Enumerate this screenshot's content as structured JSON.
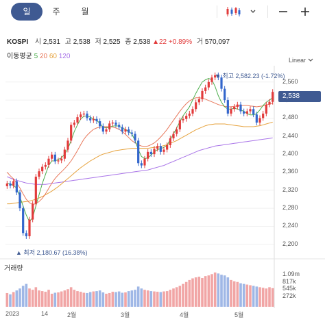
{
  "tabs": [
    {
      "label": "일",
      "active": true
    },
    {
      "label": "주",
      "active": false
    },
    {
      "label": "월",
      "active": false
    }
  ],
  "toolbar_icons": [
    "candlestick-icon",
    "chevron-down-icon",
    "minus-icon",
    "plus-icon"
  ],
  "quote": {
    "symbol": "KOSPI",
    "open_label": "시",
    "open": "2,531",
    "high_label": "고",
    "high": "2,538",
    "low_label": "저",
    "low": "2,525",
    "close_label": "종",
    "close": "2,538",
    "change": "▲22",
    "change_pct": "+0.89%",
    "volume_label": "거",
    "volume": "570,097"
  },
  "moving_averages": {
    "label": "이동평균",
    "periods": [
      "5",
      "20",
      "60",
      "120"
    ]
  },
  "scale_selector": "Linear",
  "current_price_tag": "2,538",
  "high_annotation": "최고 2,582.23 (-1.72%)",
  "low_annotation": "최저 2,180.67 (16.38%)",
  "volume_title": "거래량",
  "colors": {
    "up": "#e23b3b",
    "down": "#3366cc",
    "accent": "#3f5a92",
    "ma5": "#4cae4c",
    "ma20": "#e8775a",
    "ma60": "#e6a23c",
    "ma120": "#a974e8"
  },
  "chart_data": {
    "type": "candlestick",
    "y_ticks": [
      "2,560",
      "2,520",
      "2,480",
      "2,440",
      "2,400",
      "2,360",
      "2,320",
      "2,280",
      "2,240",
      "2,200"
    ],
    "y_range": [
      2180,
      2590
    ],
    "x_ticks": [
      "2023",
      "14",
      "2월",
      "3월",
      "4월",
      "5월"
    ],
    "volume_ticks": [
      "1.09m",
      "817k",
      "545k",
      "272k"
    ],
    "volume_max": 1090000,
    "closes": [
      2335,
      2330,
      2340,
      2315,
      2280,
      2225,
      2218,
      2255,
      2290,
      2350,
      2362,
      2372,
      2376,
      2390,
      2399,
      2384,
      2386,
      2390,
      2410,
      2430,
      2465,
      2470,
      2482,
      2488,
      2490,
      2480,
      2475,
      2478,
      2473,
      2462,
      2450,
      2455,
      2468,
      2470,
      2465,
      2460,
      2450,
      2455,
      2448,
      2445,
      2430,
      2380,
      2375,
      2390,
      2405,
      2400,
      2412,
      2418,
      2405,
      2410,
      2420,
      2435,
      2445,
      2455,
      2475,
      2478,
      2485,
      2490,
      2500,
      2515,
      2522,
      2540,
      2548,
      2560,
      2570,
      2575,
      2570,
      2545,
      2520,
      2490,
      2500,
      2505,
      2510,
      2495,
      2490,
      2495,
      2500,
      2488,
      2470,
      2480,
      2490,
      2510,
      2516,
      2538
    ],
    "ma5": [
      2335,
      2334,
      2330,
      2325,
      2305,
      2285,
      2265,
      2250,
      2260,
      2285,
      2310,
      2335,
      2355,
      2375,
      2385,
      2385,
      2388,
      2392,
      2400,
      2412,
      2430,
      2450,
      2465,
      2478,
      2484,
      2485,
      2482,
      2478,
      2475,
      2468,
      2460,
      2458,
      2460,
      2462,
      2463,
      2462,
      2458,
      2455,
      2450,
      2445,
      2430,
      2410,
      2395,
      2390,
      2392,
      2398,
      2405,
      2410,
      2412,
      2415,
      2420,
      2432,
      2445,
      2458,
      2472,
      2485,
      2495,
      2505,
      2520,
      2535,
      2548,
      2560,
      2565,
      2568,
      2565,
      2550,
      2530,
      2515,
      2505,
      2500,
      2500,
      2502,
      2500,
      2498,
      2495,
      2490,
      2487,
      2487,
      2490,
      2498,
      2508,
      2515,
      2520,
      2525
    ],
    "ma20": [
      2360,
      2352,
      2345,
      2336,
      2325,
      2312,
      2300,
      2292,
      2289,
      2290,
      2295,
      2302,
      2312,
      2324,
      2336,
      2346,
      2354,
      2361,
      2368,
      2376,
      2385,
      2396,
      2408,
      2421,
      2433,
      2442,
      2449,
      2455,
      2458,
      2460,
      2461,
      2461,
      2461,
      2460,
      2458,
      2455,
      2450,
      2444,
      2437,
      2430,
      2425,
      2421,
      2418,
      2417,
      2418,
      2421,
      2425,
      2431,
      2438,
      2446,
      2455,
      2465,
      2475,
      2485,
      2495,
      2504,
      2512,
      2518,
      2522,
      2525,
      2525,
      2524,
      2522,
      2519,
      2516,
      2513,
      2510,
      2508,
      2506,
      2505,
      2505,
      2506,
      2507,
      2508,
      2508,
      2508,
      2507,
      2506,
      2505,
      2506,
      2507,
      2509,
      2511,
      2513
    ],
    "ma60": [
      2290,
      2290,
      2291,
      2292,
      2293,
      2294,
      2295,
      2296,
      2298,
      2300,
      2303,
      2306,
      2310,
      2314,
      2318,
      2323,
      2328,
      2334,
      2340,
      2346,
      2352,
      2358,
      2364,
      2370,
      2375,
      2380,
      2385,
      2389,
      2393,
      2397,
      2400,
      2402,
      2404,
      2406,
      2408,
      2409,
      2410,
      2411,
      2412,
      2413,
      2413,
      2413,
      2413,
      2413,
      2413,
      2414,
      2415,
      2416,
      2417,
      2419,
      2421,
      2424,
      2427,
      2430,
      2434,
      2438,
      2442,
      2446,
      2450,
      2454,
      2457,
      2460,
      2463,
      2465,
      2466,
      2467,
      2467,
      2467,
      2467,
      2466,
      2465,
      2464,
      2463,
      2462,
      2461,
      2461,
      2461,
      2461,
      2462,
      2463,
      2465,
      2467,
      2469,
      2471
    ],
    "ma120": [
      2350,
      2347,
      2344,
      2342,
      2340,
      2338,
      2336,
      2335,
      2334,
      2333,
      2333,
      2333,
      2333,
      2334,
      2335,
      2336,
      2337,
      2338,
      2339,
      2340,
      2341,
      2342,
      2343,
      2344,
      2345,
      2346,
      2347,
      2348,
      2349,
      2350,
      2351,
      2352,
      2353,
      2354,
      2355,
      2356,
      2357,
      2358,
      2359,
      2360,
      2361,
      2362,
      2363,
      2364,
      2365,
      2367,
      2369,
      2371,
      2373,
      2375,
      2378,
      2381,
      2384,
      2387,
      2390,
      2393,
      2396,
      2399,
      2402,
      2405,
      2408,
      2410,
      2412,
      2414,
      2416,
      2418,
      2419,
      2420,
      2421,
      2422,
      2423,
      2424,
      2425,
      2426,
      2427,
      2428,
      2429,
      2430,
      2431,
      2432,
      2433,
      2434,
      2435,
      2436
    ],
    "volume": [
      420000,
      380000,
      450000,
      500000,
      560000,
      640000,
      700000,
      560000,
      520000,
      600000,
      500000,
      480000,
      460000,
      520000,
      400000,
      430000,
      440000,
      470000,
      500000,
      540000,
      600000,
      520000,
      480000,
      460000,
      430000,
      420000,
      450000,
      470000,
      480000,
      500000,
      440000,
      400000,
      420000,
      460000,
      450000,
      470000,
      430000,
      440000,
      480000,
      500000,
      520000,
      620000,
      560000,
      520000,
      500000,
      480000,
      470000,
      460000,
      450000,
      470000,
      480000,
      520000,
      560000,
      600000,
      640000,
      700000,
      760000,
      820000,
      870000,
      900000,
      920000,
      880000,
      940000,
      960000,
      1000000,
      1050000,
      1020000,
      980000,
      960000,
      900000,
      820000,
      780000,
      760000,
      720000,
      700000,
      680000,
      660000,
      640000,
      620000,
      600000,
      580000,
      560000,
      600000,
      570097
    ]
  }
}
